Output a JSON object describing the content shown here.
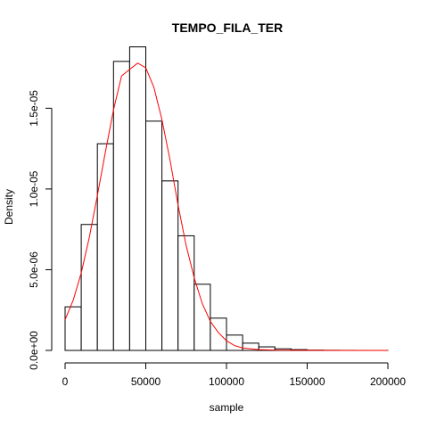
{
  "chart_data": {
    "type": "bar",
    "title": "TEMPO_FILA_TER",
    "xlabel": "sample",
    "ylabel": "Density",
    "xlim": [
      0,
      200000
    ],
    "ylim": [
      0,
      1.85e-05
    ],
    "grid": false,
    "bin_width": 10000,
    "bins": [
      {
        "x0": 0,
        "x1": 10000,
        "density": 2.7e-06
      },
      {
        "x0": 10000,
        "x1": 20000,
        "density": 7.8e-06
      },
      {
        "x0": 20000,
        "x1": 30000,
        "density": 1.28e-05
      },
      {
        "x0": 30000,
        "x1": 40000,
        "density": 1.79e-05
      },
      {
        "x0": 40000,
        "x1": 50000,
        "density": 1.88e-05
      },
      {
        "x0": 50000,
        "x1": 60000,
        "density": 1.42e-05
      },
      {
        "x0": 60000,
        "x1": 70000,
        "density": 1.05e-05
      },
      {
        "x0": 70000,
        "x1": 80000,
        "density": 7.1e-06
      },
      {
        "x0": 80000,
        "x1": 90000,
        "density": 4.1e-06
      },
      {
        "x0": 90000,
        "x1": 100000,
        "density": 2e-06
      },
      {
        "x0": 100000,
        "x1": 110000,
        "density": 9.5e-07
      },
      {
        "x0": 110000,
        "x1": 120000,
        "density": 4.5e-07
      },
      {
        "x0": 120000,
        "x1": 130000,
        "density": 2.2e-07
      },
      {
        "x0": 130000,
        "x1": 140000,
        "density": 1e-07
      },
      {
        "x0": 140000,
        "x1": 150000,
        "density": 5e-08
      },
      {
        "x0": 150000,
        "x1": 160000,
        "density": 2e-08
      },
      {
        "x0": 160000,
        "x1": 170000,
        "density": 1e-08
      },
      {
        "x0": 170000,
        "x1": 180000,
        "density": 5e-09
      },
      {
        "x0": 180000,
        "x1": 190000,
        "density": 3e-09
      },
      {
        "x0": 190000,
        "x1": 200000,
        "density": 2e-09
      }
    ],
    "fitted_curve": {
      "color": "#ff0000",
      "points": [
        [
          0,
          1.9e-06
        ],
        [
          5000,
          3.1e-06
        ],
        [
          10000,
          4.8e-06
        ],
        [
          15000,
          7e-06
        ],
        [
          20000,
          9.6e-06
        ],
        [
          25000,
          1.23e-05
        ],
        [
          30000,
          1.49e-05
        ],
        [
          35000,
          1.7e-05
        ],
        [
          40000,
          1.74e-05
        ],
        [
          45000,
          1.78e-05
        ],
        [
          50000,
          1.75e-05
        ],
        [
          55000,
          1.63e-05
        ],
        [
          60000,
          1.43e-05
        ],
        [
          65000,
          1.18e-05
        ],
        [
          70000,
          9e-06
        ],
        [
          75000,
          6.5e-06
        ],
        [
          80000,
          4.5e-06
        ],
        [
          85000,
          2.9e-06
        ],
        [
          90000,
          1.8e-06
        ],
        [
          95000,
          1.1e-06
        ],
        [
          100000,
          6e-07
        ],
        [
          105000,
          3e-07
        ],
        [
          110000,
          1.5e-07
        ],
        [
          120000,
          5e-08
        ],
        [
          130000,
          2e-08
        ],
        [
          150000,
          5e-09
        ],
        [
          200000,
          0.0
        ]
      ]
    },
    "x_ticks": [
      {
        "value": 0,
        "label": "0"
      },
      {
        "value": 50000,
        "label": "50000"
      },
      {
        "value": 100000,
        "label": "100000"
      },
      {
        "value": 150000,
        "label": "150000"
      },
      {
        "value": 200000,
        "label": "200000"
      }
    ],
    "y_ticks": [
      {
        "value": 0,
        "label": "0.0e+00"
      },
      {
        "value": 5e-06,
        "label": "5.0e-06"
      },
      {
        "value": 1e-05,
        "label": "1.0e-05"
      },
      {
        "value": 1.5e-05,
        "label": "1.5e-05"
      }
    ],
    "colors": {
      "bar_fill": "#ffffff",
      "bar_stroke": "#000000",
      "axis": "#000000"
    }
  }
}
